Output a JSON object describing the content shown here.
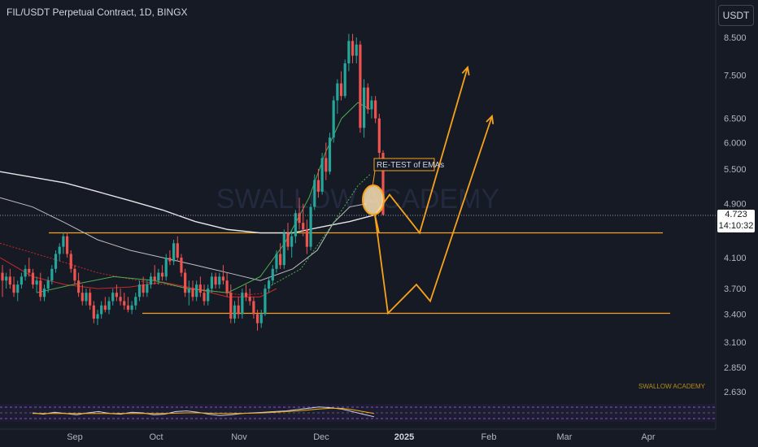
{
  "header": {
    "title": "FIL/USDT Perpetual Contract, 1D, BINGX",
    "currency_button": "USDT"
  },
  "price_label": {
    "price": "4.723",
    "countdown": "14:10:32"
  },
  "watermark": "SWALLOW ACADEMY",
  "watermark_small": "SWALLOW ACADEMY",
  "annotation": "RE-TEST of EMAs",
  "colors": {
    "background": "#161a25",
    "up": "#26a69a",
    "down": "#ef5350",
    "orange": "#f7a21b",
    "ema_white": "#e6e6e6",
    "ema_green": "#4caf50",
    "ema_red": "#c62828",
    "oscillator": "#d0cfe6"
  },
  "chart_data": {
    "type": "candlestick",
    "symbol": "FIL/USDT",
    "timeframe": "1D",
    "y_scale": "log",
    "ylim": [
      2.55,
      9.2
    ],
    "y_ticks": [
      "8.500",
      "7.500",
      "6.500",
      "6.000",
      "5.500",
      "4.900",
      "4.100",
      "3.700",
      "3.400",
      "3.100",
      "2.850",
      "2.630"
    ],
    "x_ticks": [
      "Sep",
      "Oct",
      "Nov",
      "Dec",
      "2025",
      "Feb",
      "Mar",
      "Apr"
    ],
    "current_price": 4.723,
    "horizontal_levels": [
      4.45,
      3.41
    ],
    "candles": [
      {
        "o": 3.9,
        "h": 4.0,
        "l": 3.6,
        "c": 3.8
      },
      {
        "o": 3.8,
        "h": 3.9,
        "l": 3.7,
        "c": 3.85
      },
      {
        "o": 3.85,
        "h": 3.95,
        "l": 3.7,
        "c": 3.75
      },
      {
        "o": 3.75,
        "h": 3.85,
        "l": 3.6,
        "c": 3.65
      },
      {
        "o": 3.65,
        "h": 3.8,
        "l": 3.55,
        "c": 3.75
      },
      {
        "o": 3.75,
        "h": 3.9,
        "l": 3.7,
        "c": 3.85
      },
      {
        "o": 3.85,
        "h": 4.0,
        "l": 3.8,
        "c": 3.95
      },
      {
        "o": 3.95,
        "h": 4.1,
        "l": 3.85,
        "c": 3.9
      },
      {
        "o": 3.9,
        "h": 3.95,
        "l": 3.7,
        "c": 3.75
      },
      {
        "o": 3.75,
        "h": 3.85,
        "l": 3.65,
        "c": 3.8
      },
      {
        "o": 3.8,
        "h": 3.9,
        "l": 3.55,
        "c": 3.6
      },
      {
        "o": 3.6,
        "h": 3.75,
        "l": 3.55,
        "c": 3.7
      },
      {
        "o": 3.7,
        "h": 3.85,
        "l": 3.65,
        "c": 3.8
      },
      {
        "o": 3.8,
        "h": 4.0,
        "l": 3.75,
        "c": 3.95
      },
      {
        "o": 3.95,
        "h": 4.2,
        "l": 3.9,
        "c": 4.15
      },
      {
        "o": 4.15,
        "h": 4.3,
        "l": 4.05,
        "c": 4.25
      },
      {
        "o": 4.25,
        "h": 4.45,
        "l": 4.15,
        "c": 4.4
      },
      {
        "o": 4.4,
        "h": 4.45,
        "l": 4.1,
        "c": 4.15
      },
      {
        "o": 4.15,
        "h": 4.2,
        "l": 3.9,
        "c": 3.95
      },
      {
        "o": 3.95,
        "h": 4.0,
        "l": 3.75,
        "c": 3.8
      },
      {
        "o": 3.8,
        "h": 3.9,
        "l": 3.6,
        "c": 3.65
      },
      {
        "o": 3.65,
        "h": 3.75,
        "l": 3.5,
        "c": 3.55
      },
      {
        "o": 3.55,
        "h": 3.7,
        "l": 3.5,
        "c": 3.65
      },
      {
        "o": 3.65,
        "h": 3.7,
        "l": 3.45,
        "c": 3.5
      },
      {
        "o": 3.5,
        "h": 3.55,
        "l": 3.3,
        "c": 3.35
      },
      {
        "o": 3.35,
        "h": 3.45,
        "l": 3.28,
        "c": 3.4
      },
      {
        "o": 3.4,
        "h": 3.55,
        "l": 3.35,
        "c": 3.5
      },
      {
        "o": 3.5,
        "h": 3.6,
        "l": 3.42,
        "c": 3.45
      },
      {
        "o": 3.45,
        "h": 3.6,
        "l": 3.4,
        "c": 3.55
      },
      {
        "o": 3.55,
        "h": 3.7,
        "l": 3.5,
        "c": 3.65
      },
      {
        "o": 3.65,
        "h": 3.75,
        "l": 3.55,
        "c": 3.6
      },
      {
        "o": 3.6,
        "h": 3.7,
        "l": 3.5,
        "c": 3.55
      },
      {
        "o": 3.55,
        "h": 3.65,
        "l": 3.45,
        "c": 3.5
      },
      {
        "o": 3.5,
        "h": 3.6,
        "l": 3.42,
        "c": 3.45
      },
      {
        "o": 3.45,
        "h": 3.55,
        "l": 3.4,
        "c": 3.5
      },
      {
        "o": 3.5,
        "h": 3.65,
        "l": 3.45,
        "c": 3.6
      },
      {
        "o": 3.6,
        "h": 3.8,
        "l": 3.55,
        "c": 3.75
      },
      {
        "o": 3.75,
        "h": 3.85,
        "l": 3.6,
        "c": 3.65
      },
      {
        "o": 3.65,
        "h": 3.8,
        "l": 3.6,
        "c": 3.75
      },
      {
        "o": 3.75,
        "h": 3.9,
        "l": 3.7,
        "c": 3.85
      },
      {
        "o": 3.85,
        "h": 4.0,
        "l": 3.75,
        "c": 3.8
      },
      {
        "o": 3.8,
        "h": 3.95,
        "l": 3.75,
        "c": 3.9
      },
      {
        "o": 3.9,
        "h": 4.0,
        "l": 3.8,
        "c": 3.85
      },
      {
        "o": 3.85,
        "h": 4.15,
        "l": 3.8,
        "c": 4.1
      },
      {
        "o": 4.1,
        "h": 4.2,
        "l": 4.0,
        "c": 4.05
      },
      {
        "o": 4.05,
        "h": 4.35,
        "l": 4.0,
        "c": 4.3
      },
      {
        "o": 4.3,
        "h": 4.4,
        "l": 4.05,
        "c": 4.1
      },
      {
        "o": 4.1,
        "h": 4.15,
        "l": 3.85,
        "c": 3.9
      },
      {
        "o": 3.9,
        "h": 3.95,
        "l": 3.6,
        "c": 3.65
      },
      {
        "o": 3.65,
        "h": 3.8,
        "l": 3.5,
        "c": 3.7
      },
      {
        "o": 3.7,
        "h": 3.8,
        "l": 3.55,
        "c": 3.6
      },
      {
        "o": 3.6,
        "h": 3.8,
        "l": 3.55,
        "c": 3.75
      },
      {
        "o": 3.75,
        "h": 3.85,
        "l": 3.6,
        "c": 3.65
      },
      {
        "o": 3.65,
        "h": 3.75,
        "l": 3.5,
        "c": 3.55
      },
      {
        "o": 3.55,
        "h": 3.75,
        "l": 3.5,
        "c": 3.7
      },
      {
        "o": 3.7,
        "h": 3.9,
        "l": 3.65,
        "c": 3.85
      },
      {
        "o": 3.85,
        "h": 3.9,
        "l": 3.7,
        "c": 3.75
      },
      {
        "o": 3.75,
        "h": 3.9,
        "l": 3.7,
        "c": 3.85
      },
      {
        "o": 3.85,
        "h": 4.0,
        "l": 3.75,
        "c": 3.8
      },
      {
        "o": 3.8,
        "h": 3.9,
        "l": 3.6,
        "c": 3.65
      },
      {
        "o": 3.65,
        "h": 3.75,
        "l": 3.3,
        "c": 3.35
      },
      {
        "o": 3.35,
        "h": 3.55,
        "l": 3.3,
        "c": 3.5
      },
      {
        "o": 3.5,
        "h": 3.6,
        "l": 3.35,
        "c": 3.4
      },
      {
        "o": 3.4,
        "h": 3.7,
        "l": 3.35,
        "c": 3.65
      },
      {
        "o": 3.65,
        "h": 3.75,
        "l": 3.55,
        "c": 3.6
      },
      {
        "o": 3.6,
        "h": 3.7,
        "l": 3.5,
        "c": 3.55
      },
      {
        "o": 3.55,
        "h": 3.6,
        "l": 3.35,
        "c": 3.4
      },
      {
        "o": 3.4,
        "h": 3.45,
        "l": 3.22,
        "c": 3.3
      },
      {
        "o": 3.3,
        "h": 3.45,
        "l": 3.25,
        "c": 3.4
      },
      {
        "o": 3.4,
        "h": 3.75,
        "l": 3.38,
        "c": 3.7
      },
      {
        "o": 3.7,
        "h": 3.85,
        "l": 3.65,
        "c": 3.8
      },
      {
        "o": 3.8,
        "h": 4.0,
        "l": 3.75,
        "c": 3.95
      },
      {
        "o": 3.95,
        "h": 4.2,
        "l": 3.9,
        "c": 4.15
      },
      {
        "o": 4.15,
        "h": 4.3,
        "l": 3.95,
        "c": 4.0
      },
      {
        "o": 4.0,
        "h": 4.5,
        "l": 3.95,
        "c": 4.45
      },
      {
        "o": 4.45,
        "h": 4.6,
        "l": 4.2,
        "c": 4.25
      },
      {
        "o": 4.25,
        "h": 4.5,
        "l": 4.1,
        "c": 4.4
      },
      {
        "o": 4.4,
        "h": 4.8,
        "l": 4.3,
        "c": 4.75
      },
      {
        "o": 4.75,
        "h": 5.0,
        "l": 4.5,
        "c": 4.6
      },
      {
        "o": 4.6,
        "h": 4.9,
        "l": 4.4,
        "c": 4.5
      },
      {
        "o": 4.5,
        "h": 4.65,
        "l": 4.15,
        "c": 4.25
      },
      {
        "o": 4.25,
        "h": 4.9,
        "l": 4.2,
        "c": 4.85
      },
      {
        "o": 4.85,
        "h": 5.4,
        "l": 4.8,
        "c": 5.3
      },
      {
        "o": 5.3,
        "h": 5.5,
        "l": 5.0,
        "c": 5.1
      },
      {
        "o": 5.1,
        "h": 5.8,
        "l": 5.05,
        "c": 5.7
      },
      {
        "o": 5.7,
        "h": 6.0,
        "l": 5.3,
        "c": 5.45
      },
      {
        "o": 5.45,
        "h": 6.2,
        "l": 5.4,
        "c": 6.1
      },
      {
        "o": 6.1,
        "h": 7.0,
        "l": 6.0,
        "c": 6.9
      },
      {
        "o": 6.9,
        "h": 7.4,
        "l": 6.6,
        "c": 7.3
      },
      {
        "o": 7.3,
        "h": 7.6,
        "l": 6.9,
        "c": 7.0
      },
      {
        "o": 7.0,
        "h": 7.9,
        "l": 6.95,
        "c": 7.8
      },
      {
        "o": 7.8,
        "h": 8.6,
        "l": 7.6,
        "c": 8.4
      },
      {
        "o": 8.4,
        "h": 8.6,
        "l": 7.8,
        "c": 8.0
      },
      {
        "o": 8.0,
        "h": 8.5,
        "l": 7.8,
        "c": 8.3
      },
      {
        "o": 8.3,
        "h": 8.4,
        "l": 6.2,
        "c": 6.3
      },
      {
        "o": 6.3,
        "h": 7.4,
        "l": 6.1,
        "c": 7.2
      },
      {
        "o": 7.2,
        "h": 7.3,
        "l": 6.6,
        "c": 6.7
      },
      {
        "o": 6.7,
        "h": 7.0,
        "l": 6.5,
        "c": 6.9
      },
      {
        "o": 6.9,
        "h": 7.0,
        "l": 6.4,
        "c": 6.5
      },
      {
        "o": 6.5,
        "h": 6.6,
        "l": 5.7,
        "c": 5.8
      },
      {
        "o": 5.8,
        "h": 5.85,
        "l": 4.72,
        "c": 4.723
      }
    ],
    "ema_white": [
      [
        0,
        5.45
      ],
      [
        40,
        5.35
      ],
      [
        80,
        5.25
      ],
      [
        120,
        5.1
      ],
      [
        160,
        4.95
      ],
      [
        200,
        4.8
      ],
      [
        240,
        4.62
      ],
      [
        280,
        4.5
      ],
      [
        320,
        4.45
      ],
      [
        360,
        4.45
      ],
      [
        400,
        4.55
      ],
      [
        430,
        4.62
      ],
      [
        460,
        4.72
      ]
    ],
    "ema_grey": [
      [
        0,
        5.0
      ],
      [
        40,
        4.85
      ],
      [
        80,
        4.6
      ],
      [
        120,
        4.35
      ],
      [
        160,
        4.2
      ],
      [
        200,
        4.1
      ],
      [
        240,
        4.0
      ],
      [
        280,
        3.9
      ],
      [
        320,
        3.8
      ],
      [
        360,
        3.95
      ],
      [
        390,
        4.2
      ],
      [
        410,
        4.6
      ],
      [
        430,
        4.85
      ],
      [
        450,
        4.9
      ]
    ],
    "ema_green": [
      [
        45,
        3.65
      ],
      [
        90,
        3.75
      ],
      [
        140,
        3.85
      ],
      [
        190,
        3.8
      ],
      [
        230,
        3.7
      ],
      [
        280,
        3.65
      ],
      [
        320,
        3.85
      ],
      [
        350,
        4.3
      ],
      [
        380,
        5.0
      ],
      [
        400,
        5.8
      ],
      [
        420,
        6.5
      ],
      [
        440,
        6.85
      ],
      [
        455,
        6.7
      ]
    ],
    "ema_red": [
      [
        0,
        4.1
      ],
      [
        40,
        3.85
      ],
      [
        80,
        3.75
      ],
      [
        120,
        3.7
      ],
      [
        160,
        3.72
      ],
      [
        200,
        3.78
      ],
      [
        240,
        3.7
      ],
      [
        280,
        3.6
      ],
      [
        320,
        3.6
      ],
      [
        340,
        3.7
      ]
    ],
    "ema_dotted_red": [
      [
        0,
        4.3
      ],
      [
        60,
        4.1
      ],
      [
        120,
        3.9
      ],
      [
        180,
        3.78
      ],
      [
        240,
        3.7
      ],
      [
        300,
        3.62
      ],
      [
        330,
        3.65
      ]
    ],
    "ema_dotted_green": [
      [
        330,
        3.72
      ],
      [
        370,
        3.95
      ],
      [
        410,
        4.6
      ],
      [
        440,
        5.2
      ],
      [
        455,
        5.4
      ]
    ],
    "projections": [
      {
        "color": "orange",
        "path": [
          [
            461,
            4.72
          ],
          [
            479,
            5.05
          ],
          [
            516,
            4.45
          ],
          [
            575,
            7.7
          ]
        ],
        "arrow": true
      },
      {
        "color": "orange",
        "path": [
          [
            461,
            4.72
          ],
          [
            477,
            3.41
          ],
          [
            512,
            3.75
          ],
          [
            529,
            3.55
          ],
          [
            605,
            6.55
          ]
        ],
        "arrow": true
      },
      {
        "color": "orange",
        "path": [
          [
            461,
            4.72
          ],
          [
            466,
            4.45
          ]
        ],
        "arrow": false
      }
    ],
    "annotation_point": {
      "x_index": 97,
      "price": 4.9
    },
    "oscillator": {
      "values": [
        0.5,
        0.4,
        0.55,
        0.45,
        0.35,
        0.5,
        0.6,
        0.45,
        0.4,
        0.55,
        0.5,
        0.35,
        0.4,
        0.6,
        0.65,
        0.55,
        0.4,
        0.3,
        0.35,
        0.45,
        0.5,
        0.55,
        0.6,
        0.65,
        0.75,
        0.85,
        0.95,
        0.9,
        0.8,
        0.6,
        0.4,
        0.2
      ],
      "signal": [
        0.45,
        0.45,
        0.45,
        0.45,
        0.45,
        0.45,
        0.45,
        0.45,
        0.45,
        0.45,
        0.45,
        0.45,
        0.45,
        0.48,
        0.5,
        0.5,
        0.48,
        0.45,
        0.45,
        0.46,
        0.48,
        0.5,
        0.55,
        0.6,
        0.65,
        0.72,
        0.8,
        0.85,
        0.85,
        0.75,
        0.6,
        0.45
      ]
    }
  }
}
